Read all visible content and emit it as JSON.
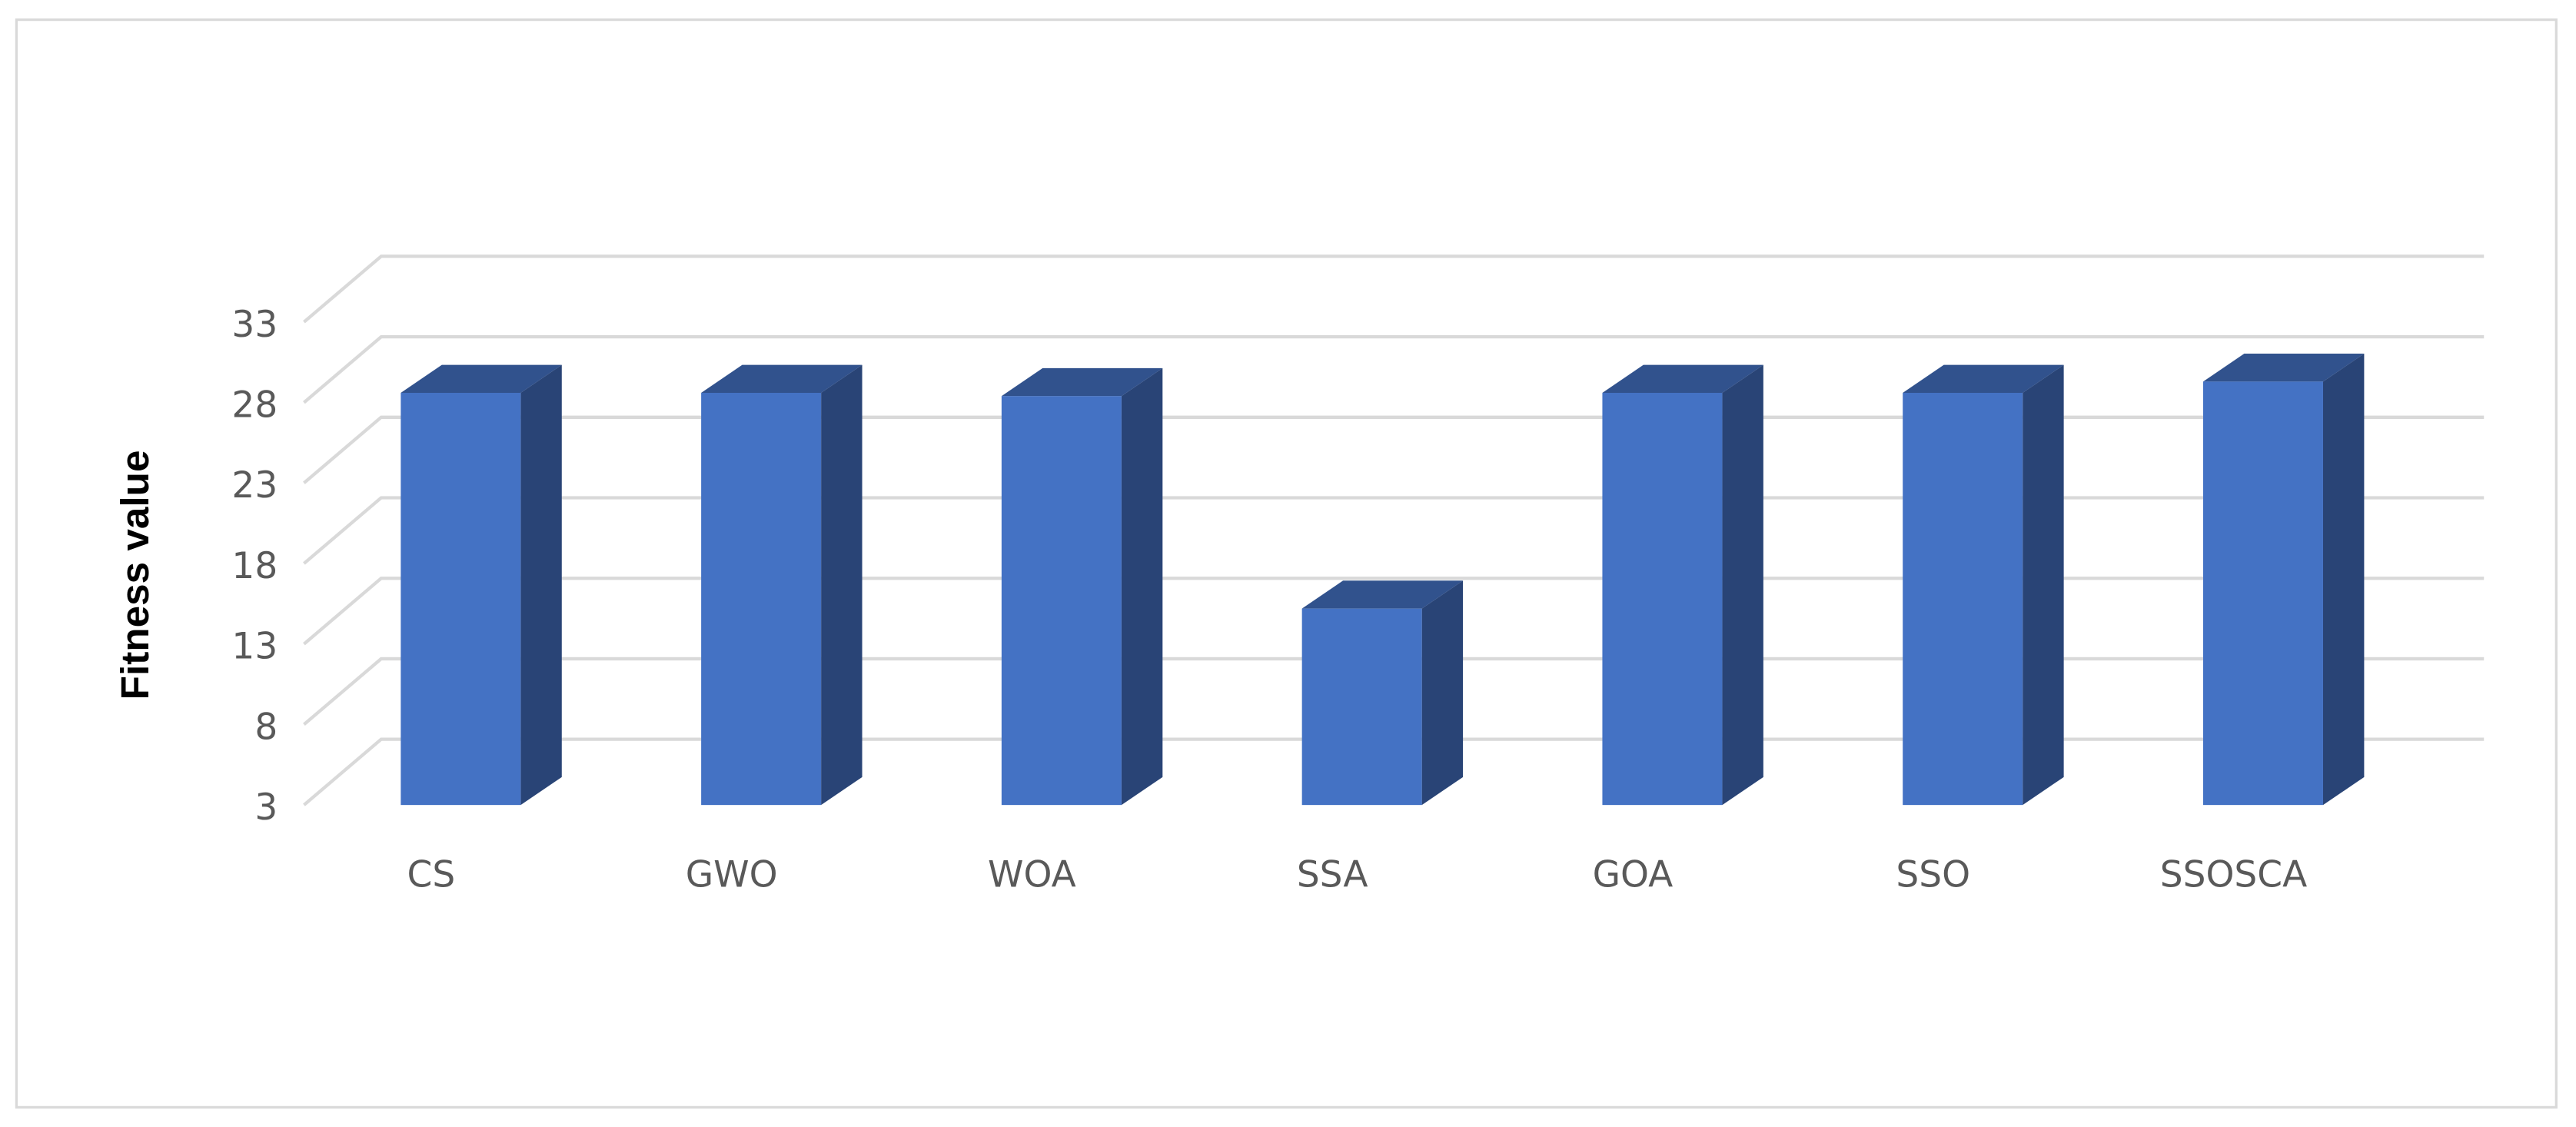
{
  "chart_data": {
    "type": "bar",
    "y_label": "Fitness value",
    "categories": [
      "CS",
      "GWO",
      "WOA",
      "SSA",
      "GOA",
      "SSO",
      "SSOSCA"
    ],
    "values": [
      28.6,
      28.6,
      28.4,
      15.2,
      28.6,
      28.6,
      29.3
    ],
    "color": "#4472c4",
    "ylim": [
      3,
      33
    ],
    "yticks": [
      3,
      8,
      13,
      18,
      23,
      28,
      33
    ],
    "grid": true
  }
}
